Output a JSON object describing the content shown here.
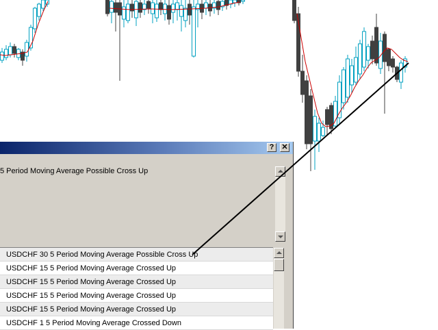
{
  "window": {
    "help_button": "?",
    "close_button": "✕"
  },
  "message_pane": {
    "text": "5 Period Moving Average Possible Cross Up"
  },
  "alerts": [
    {
      "text": "USDCHF 30 5 Period Moving Average Possible Cross Up"
    },
    {
      "text": "USDCHF 15 5 Period Moving Average Crossed Up"
    },
    {
      "text": "USDCHF 15 5 Period Moving Average Crossed Up"
    },
    {
      "text": "USDCHF 15 5 Period Moving Average Crossed Up"
    },
    {
      "text": "USDCHF 15 5 Period Moving Average Crossed Up"
    },
    {
      "text": "USDCHF 1 5 Period Moving Average Crossed Down"
    }
  ],
  "colors": {
    "bull_candle": "#00a0c0",
    "bear_candle": "#404040",
    "moving_average": "#cc0000",
    "title_start": "#0a246a",
    "title_end": "#a6caf0",
    "annotation_line": "#000000"
  },
  "icons": {
    "help": "help-icon",
    "close": "close-icon",
    "scroll_up": "arrow-up-icon",
    "scroll_down": "arrow-down-icon"
  }
}
